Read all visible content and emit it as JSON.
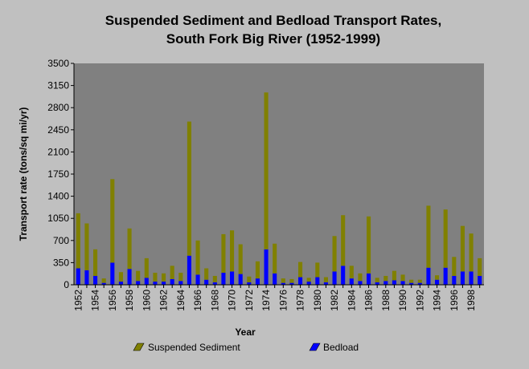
{
  "chart_data": {
    "type": "bar",
    "title": "Suspended Sediment and Bedload Transport Rates,",
    "subtitle": "South Fork Big River (1952-1999)",
    "xlabel": "Year",
    "ylabel": "Transport rate (tons/sq mi/yr)",
    "ylim": [
      0,
      3500
    ],
    "yticks": [
      0,
      350,
      700,
      1050,
      1400,
      1750,
      2100,
      2450,
      2800,
      3150,
      3500
    ],
    "stacked": true,
    "grid": false,
    "legend_position": "bottom",
    "categories": [
      1952,
      1953,
      1954,
      1955,
      1956,
      1957,
      1958,
      1959,
      1960,
      1961,
      1962,
      1963,
      1964,
      1965,
      1966,
      1967,
      1968,
      1969,
      1970,
      1971,
      1972,
      1973,
      1974,
      1975,
      1976,
      1977,
      1978,
      1979,
      1980,
      1981,
      1982,
      1983,
      1984,
      1985,
      1986,
      1987,
      1988,
      1989,
      1990,
      1991,
      1992,
      1993,
      1994,
      1995,
      1996,
      1997,
      1998,
      1999
    ],
    "xtick_labels": [
      "1952",
      "1954",
      "1956",
      "1958",
      "1960",
      "1962",
      "1964",
      "1966",
      "1968",
      "1970",
      "1972",
      "1974",
      "1976",
      "1978",
      "1980",
      "1982",
      "1984",
      "1986",
      "1988",
      "1990",
      "1992",
      "1994",
      "1996",
      "1998"
    ],
    "series": [
      {
        "name": "Suspended Sediment",
        "color": "#808000",
        "values": [
          870,
          740,
          420,
          70,
          1320,
          150,
          640,
          160,
          310,
          140,
          130,
          210,
          130,
          2120,
          540,
          180,
          100,
          610,
          650,
          470,
          90,
          270,
          2480,
          470,
          70,
          60,
          240,
          60,
          230,
          80,
          560,
          800,
          200,
          120,
          900,
          70,
          80,
          150,
          100,
          50,
          50,
          980,
          70,
          920,
          300,
          720,
          600,
          280
        ]
      },
      {
        "name": "Bedload",
        "color": "#0000ff",
        "values": [
          260,
          230,
          140,
          30,
          350,
          50,
          250,
          60,
          110,
          50,
          50,
          90,
          60,
          460,
          160,
          80,
          40,
          190,
          210,
          170,
          40,
          100,
          560,
          180,
          30,
          30,
          120,
          50,
          120,
          40,
          210,
          300,
          100,
          60,
          180,
          40,
          60,
          70,
          60,
          30,
          30,
          270,
          80,
          270,
          140,
          210,
          210,
          140
        ]
      }
    ]
  }
}
